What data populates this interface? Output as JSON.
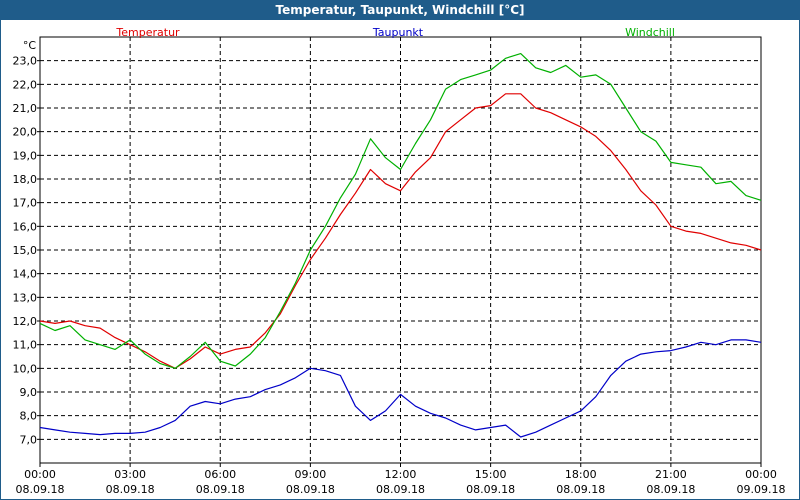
{
  "window": {
    "title": "Temperatur, Taupunkt, Windchill [°C]"
  },
  "chart_data": {
    "type": "line",
    "title": "Temperatur, Taupunkt, Windchill [°C]",
    "ylabel": "°C",
    "ylim": [
      6.0,
      24.0
    ],
    "ytick_labels": [
      "7,0",
      "8,0",
      "9,0",
      "10,0",
      "11,0",
      "12,0",
      "13,0",
      "14,0",
      "15,0",
      "16,0",
      "17,0",
      "18,0",
      "19,0",
      "20,0",
      "21,0",
      "22,0",
      "23,0"
    ],
    "ytick_values": [
      7,
      8,
      9,
      10,
      11,
      12,
      13,
      14,
      15,
      16,
      17,
      18,
      19,
      20,
      21,
      22,
      23
    ],
    "xlim": [
      0,
      24
    ],
    "xtick_hours": [
      0,
      3,
      6,
      9,
      12,
      15,
      18,
      21,
      24
    ],
    "xtick_labels": [
      {
        "time": "00:00",
        "date": "08.09.18"
      },
      {
        "time": "03:00",
        "date": "08.09.18"
      },
      {
        "time": "06:00",
        "date": "08.09.18"
      },
      {
        "time": "09:00",
        "date": "08.09.18"
      },
      {
        "time": "12:00",
        "date": "08.09.18"
      },
      {
        "time": "15:00",
        "date": "08.09.18"
      },
      {
        "time": "18:00",
        "date": "08.09.18"
      },
      {
        "time": "21:00",
        "date": "08.09.18"
      },
      {
        "time": "00:00",
        "date": "09.09.18"
      }
    ],
    "grid": true,
    "legend_position": "top",
    "series": [
      {
        "name": "Temperatur",
        "color": "#e00000",
        "points": [
          [
            0,
            12.0
          ],
          [
            0.5,
            11.9
          ],
          [
            1,
            12.0
          ],
          [
            1.5,
            11.8
          ],
          [
            2,
            11.7
          ],
          [
            2.5,
            11.3
          ],
          [
            3,
            11.0
          ],
          [
            3.5,
            10.7
          ],
          [
            4,
            10.3
          ],
          [
            4.5,
            10.0
          ],
          [
            5,
            10.4
          ],
          [
            5.5,
            10.9
          ],
          [
            6,
            10.6
          ],
          [
            6.5,
            10.8
          ],
          [
            7,
            10.9
          ],
          [
            7.5,
            11.5
          ],
          [
            8,
            12.3
          ],
          [
            8.5,
            13.5
          ],
          [
            9,
            14.6
          ],
          [
            9.5,
            15.5
          ],
          [
            10,
            16.5
          ],
          [
            10.5,
            17.4
          ],
          [
            11,
            18.4
          ],
          [
            11.5,
            17.8
          ],
          [
            12,
            17.5
          ],
          [
            12.5,
            18.3
          ],
          [
            13,
            18.9
          ],
          [
            13.5,
            20.0
          ],
          [
            14,
            20.5
          ],
          [
            14.5,
            21.0
          ],
          [
            15,
            21.1
          ],
          [
            15.5,
            21.6
          ],
          [
            16,
            21.6
          ],
          [
            16.5,
            21.0
          ],
          [
            17,
            20.8
          ],
          [
            17.5,
            20.5
          ],
          [
            18,
            20.2
          ],
          [
            18.5,
            19.8
          ],
          [
            19,
            19.2
          ],
          [
            19.5,
            18.4
          ],
          [
            20,
            17.5
          ],
          [
            20.5,
            16.9
          ],
          [
            21,
            16.0
          ],
          [
            21.5,
            15.8
          ],
          [
            22,
            15.7
          ],
          [
            22.5,
            15.5
          ],
          [
            23,
            15.3
          ],
          [
            23.5,
            15.2
          ],
          [
            24,
            15.0
          ]
        ]
      },
      {
        "name": "Taupunkt",
        "color": "#0000c8",
        "points": [
          [
            0,
            7.5
          ],
          [
            0.5,
            7.4
          ],
          [
            1,
            7.3
          ],
          [
            1.5,
            7.25
          ],
          [
            2,
            7.2
          ],
          [
            2.5,
            7.25
          ],
          [
            3,
            7.25
          ],
          [
            3.5,
            7.3
          ],
          [
            4,
            7.5
          ],
          [
            4.5,
            7.8
          ],
          [
            5,
            8.4
          ],
          [
            5.5,
            8.6
          ],
          [
            6,
            8.5
          ],
          [
            6.5,
            8.7
          ],
          [
            7,
            8.8
          ],
          [
            7.5,
            9.1
          ],
          [
            8,
            9.3
          ],
          [
            8.5,
            9.6
          ],
          [
            9,
            10.0
          ],
          [
            9.5,
            9.9
          ],
          [
            10,
            9.7
          ],
          [
            10.5,
            8.4
          ],
          [
            11,
            7.8
          ],
          [
            11.5,
            8.2
          ],
          [
            12,
            8.9
          ],
          [
            12.5,
            8.4
          ],
          [
            13,
            8.1
          ],
          [
            13.5,
            7.9
          ],
          [
            14,
            7.6
          ],
          [
            14.5,
            7.4
          ],
          [
            15,
            7.5
          ],
          [
            15.5,
            7.6
          ],
          [
            16,
            7.1
          ],
          [
            16.5,
            7.3
          ],
          [
            17,
            7.6
          ],
          [
            17.5,
            7.9
          ],
          [
            18,
            8.2
          ],
          [
            18.5,
            8.8
          ],
          [
            19,
            9.7
          ],
          [
            19.5,
            10.3
          ],
          [
            20,
            10.6
          ],
          [
            20.5,
            10.7
          ],
          [
            21,
            10.75
          ],
          [
            21.5,
            10.9
          ],
          [
            22,
            11.1
          ],
          [
            22.5,
            11.0
          ],
          [
            23,
            11.2
          ],
          [
            23.5,
            11.2
          ],
          [
            24,
            11.1
          ]
        ]
      },
      {
        "name": "Windchill",
        "color": "#00b000",
        "points": [
          [
            0,
            11.9
          ],
          [
            0.5,
            11.6
          ],
          [
            1,
            11.8
          ],
          [
            1.5,
            11.2
          ],
          [
            2,
            11.0
          ],
          [
            2.5,
            10.8
          ],
          [
            3,
            11.2
          ],
          [
            3.5,
            10.6
          ],
          [
            4,
            10.2
          ],
          [
            4.5,
            10.0
          ],
          [
            5,
            10.5
          ],
          [
            5.5,
            11.1
          ],
          [
            6,
            10.3
          ],
          [
            6.5,
            10.1
          ],
          [
            7,
            10.6
          ],
          [
            7.5,
            11.3
          ],
          [
            8,
            12.4
          ],
          [
            8.5,
            13.6
          ],
          [
            9,
            15.0
          ],
          [
            9.5,
            16.0
          ],
          [
            10,
            17.2
          ],
          [
            10.5,
            18.2
          ],
          [
            11,
            19.7
          ],
          [
            11.5,
            18.9
          ],
          [
            12,
            18.4
          ],
          [
            12.5,
            19.5
          ],
          [
            13,
            20.5
          ],
          [
            13.5,
            21.8
          ],
          [
            14,
            22.2
          ],
          [
            14.5,
            22.4
          ],
          [
            15,
            22.6
          ],
          [
            15.5,
            23.1
          ],
          [
            16,
            23.3
          ],
          [
            16.5,
            22.7
          ],
          [
            17,
            22.5
          ],
          [
            17.5,
            22.8
          ],
          [
            18,
            22.3
          ],
          [
            18.5,
            22.4
          ],
          [
            19,
            22.0
          ],
          [
            19.5,
            21.0
          ],
          [
            20,
            20.0
          ],
          [
            20.5,
            19.6
          ],
          [
            21,
            18.7
          ],
          [
            21.5,
            18.6
          ],
          [
            22,
            18.5
          ],
          [
            22.5,
            17.8
          ],
          [
            23,
            17.9
          ],
          [
            23.5,
            17.3
          ],
          [
            24,
            17.1
          ]
        ]
      }
    ]
  }
}
